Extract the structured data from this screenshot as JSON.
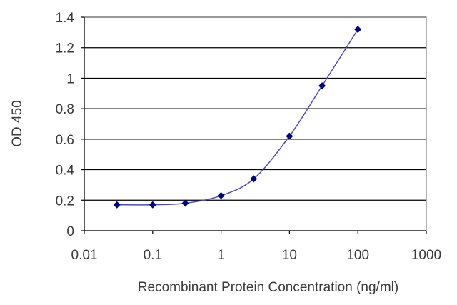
{
  "chart_data": {
    "type": "scatter",
    "title": "",
    "xlabel": "Recombinant Protein Concentration (ng/ml)",
    "ylabel": "OD 450",
    "xscale": "log",
    "xlim": [
      0.01,
      1000
    ],
    "ylim": [
      0,
      1.4
    ],
    "xticks": [
      "0.01",
      "0.1",
      "1",
      "10",
      "100",
      "1000"
    ],
    "yticks": [
      "0",
      "0.2",
      "0.4",
      "0.6",
      "0.8",
      "1",
      "1.2",
      "1.4"
    ],
    "grid": "horizontal",
    "legend": "none",
    "series": [
      {
        "x": [
          0.03,
          0.1,
          0.3,
          1,
          3,
          10,
          30,
          100
        ],
        "y": [
          0.17,
          0.17,
          0.18,
          0.23,
          0.34,
          0.62,
          0.95,
          1.32
        ],
        "color": "#00008b",
        "line_color": "#4a4ad0",
        "marker": "diamond"
      }
    ]
  }
}
